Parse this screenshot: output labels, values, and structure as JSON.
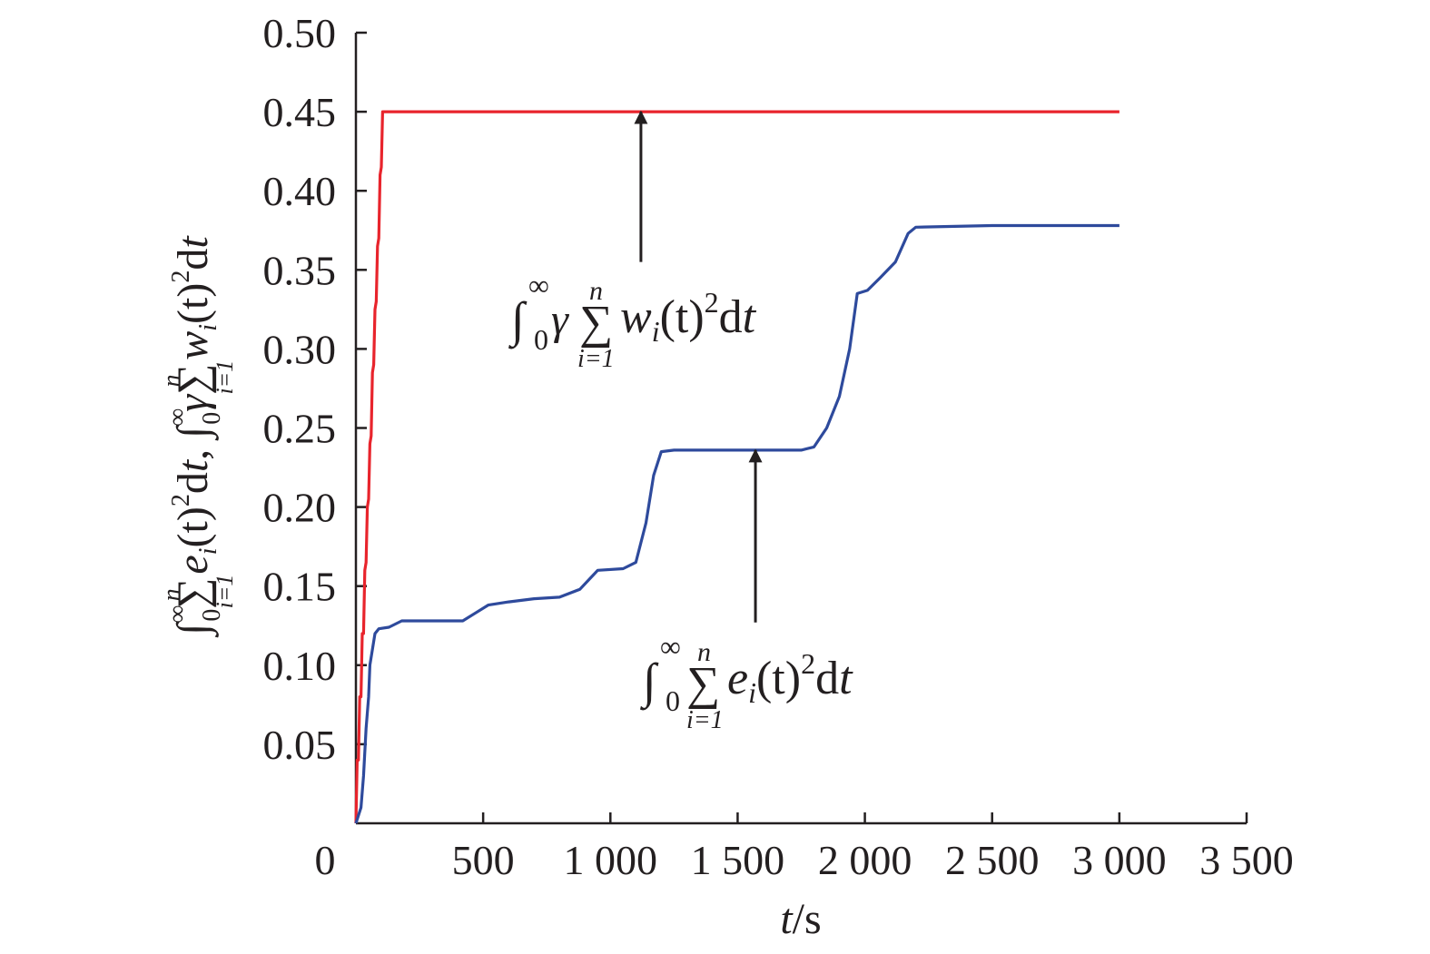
{
  "chart_data": {
    "type": "line",
    "title": "",
    "xlabel": {
      "var": "t",
      "unit": "/s"
    },
    "ylabel": {
      "part1": {
        "base": "e",
        "sub": "i",
        "arg": "(t)"
      },
      "sep": ",",
      "part2": {
        "coef": "γ",
        "base": "w",
        "sub": "i",
        "arg": "(t)"
      }
    },
    "xlim": [
      0,
      3500
    ],
    "ylim": [
      0,
      0.5
    ],
    "x_ticks": [
      0,
      500,
      1000,
      1500,
      2000,
      2500,
      3000,
      3500
    ],
    "x_tick_labels": [
      "0",
      "500",
      "1 000",
      "1 500",
      "2 000",
      "2 500",
      "3 000",
      "3 500"
    ],
    "y_ticks": [
      0.05,
      0.1,
      0.15,
      0.2,
      0.25,
      0.3,
      0.35,
      0.4,
      0.45,
      0.5
    ],
    "y_tick_labels": [
      "0.05",
      "0.10",
      "0.15",
      "0.20",
      "0.25",
      "0.30",
      "0.35",
      "0.40",
      "0.45",
      "0.50"
    ],
    "grid": false,
    "series": [
      {
        "color": "#e8242c",
        "points": [
          [
            0,
            0
          ],
          [
            5,
            0.04
          ],
          [
            10,
            0.04
          ],
          [
            15,
            0.08
          ],
          [
            20,
            0.08
          ],
          [
            25,
            0.12
          ],
          [
            30,
            0.12
          ],
          [
            35,
            0.16
          ],
          [
            40,
            0.165
          ],
          [
            45,
            0.2
          ],
          [
            50,
            0.205
          ],
          [
            55,
            0.24
          ],
          [
            60,
            0.245
          ],
          [
            65,
            0.285
          ],
          [
            70,
            0.29
          ],
          [
            75,
            0.325
          ],
          [
            80,
            0.33
          ],
          [
            85,
            0.365
          ],
          [
            90,
            0.37
          ],
          [
            95,
            0.41
          ],
          [
            100,
            0.415
          ],
          [
            105,
            0.45
          ],
          [
            3000,
            0.45
          ]
        ]
      },
      {
        "color": "#2e4a9c",
        "points": [
          [
            0,
            0
          ],
          [
            20,
            0.01
          ],
          [
            30,
            0.03
          ],
          [
            40,
            0.06
          ],
          [
            50,
            0.08
          ],
          [
            55,
            0.1
          ],
          [
            65,
            0.11
          ],
          [
            75,
            0.12
          ],
          [
            90,
            0.123
          ],
          [
            130,
            0.124
          ],
          [
            180,
            0.128
          ],
          [
            420,
            0.128
          ],
          [
            470,
            0.133
          ],
          [
            520,
            0.138
          ],
          [
            600,
            0.14
          ],
          [
            700,
            0.142
          ],
          [
            800,
            0.143
          ],
          [
            880,
            0.148
          ],
          [
            950,
            0.16
          ],
          [
            1050,
            0.161
          ],
          [
            1100,
            0.165
          ],
          [
            1140,
            0.19
          ],
          [
            1170,
            0.22
          ],
          [
            1200,
            0.235
          ],
          [
            1250,
            0.236
          ],
          [
            1750,
            0.236
          ],
          [
            1800,
            0.238
          ],
          [
            1850,
            0.25
          ],
          [
            1900,
            0.27
          ],
          [
            1940,
            0.3
          ],
          [
            1970,
            0.335
          ],
          [
            2010,
            0.337
          ],
          [
            2060,
            0.345
          ],
          [
            2120,
            0.355
          ],
          [
            2170,
            0.373
          ],
          [
            2200,
            0.377
          ],
          [
            2500,
            0.378
          ],
          [
            3000,
            0.378
          ]
        ]
      }
    ],
    "annotations": [
      {
        "id": "red-label",
        "text": {
          "integral": "∫",
          "upper": "∞",
          "lower": "0",
          "coef": "γ",
          "sum": "∑",
          "sum_upper": "n",
          "sum_lower": "i=1",
          "base": "w",
          "sub": "i",
          "arg": "(t)",
          "sup": "2",
          "tail": "d",
          "var": "t"
        },
        "arrow_from": [
          1120,
          0.355
        ],
        "arrow_to": [
          1120,
          0.45
        ]
      },
      {
        "id": "blue-label",
        "text": {
          "integral": "∫",
          "upper": "∞",
          "lower": "0",
          "sum": "∑",
          "sum_upper": "n",
          "sum_lower": "i=1",
          "base": "e",
          "sub": "i",
          "arg": "(t)",
          "sup": "2",
          "tail": "d",
          "var": "t"
        },
        "arrow_from": [
          1570,
          0.127
        ],
        "arrow_to": [
          1570,
          0.236
        ]
      }
    ]
  }
}
